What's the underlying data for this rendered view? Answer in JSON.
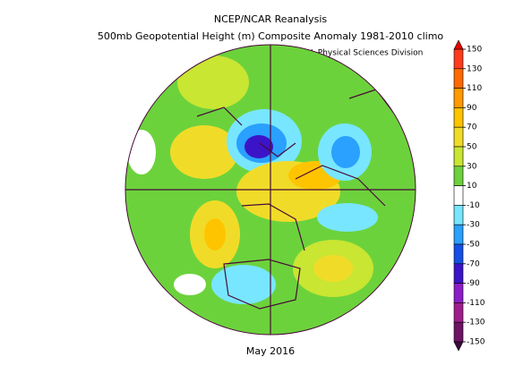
{
  "header": {
    "title": "NCEP/NCAR Reanalysis",
    "subtitle": "500mb Geopotential Height (m) Composite Anomaly 1981-2010 climo",
    "credit": "NOAA/ESRL Physical Sciences Division"
  },
  "footer": {
    "date": "May 2016"
  },
  "colorbar": {
    "ticks": [
      150,
      130,
      110,
      90,
      70,
      50,
      30,
      10,
      -10,
      -30,
      -50,
      -70,
      -90,
      -110,
      -130,
      -150
    ],
    "colors": [
      "#ff3c1e",
      "#ff6a00",
      "#ff9a00",
      "#ffc400",
      "#f0dc28",
      "#c8e632",
      "#6cd23c",
      "#ffffff",
      "#78e6ff",
      "#2aa0ff",
      "#1450e6",
      "#3c14c8",
      "#8c1ec8",
      "#a01e8c",
      "#6e1464"
    ],
    "over_color": "#e60000",
    "under_color": "#3c0a3c"
  }
}
